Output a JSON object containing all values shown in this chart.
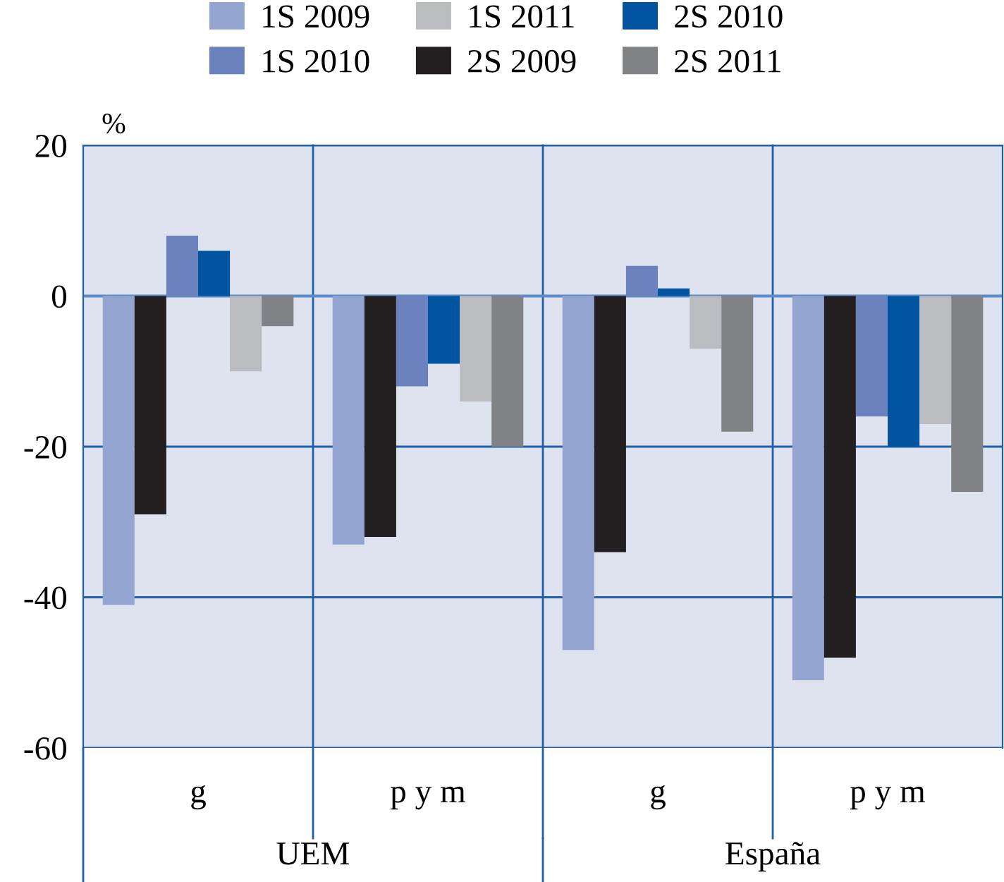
{
  "chart_data": {
    "type": "bar",
    "ylabel": "%",
    "categories": [
      "g",
      "p y m",
      "g",
      "p y m"
    ],
    "series": [
      {
        "name": "1S 2009",
        "color": "#95a5d1",
        "values": [
          -41,
          -33,
          -47,
          -51
        ]
      },
      {
        "name": "2S 2009",
        "color": "#231f20",
        "values": [
          -29,
          -32,
          -34,
          -48
        ]
      },
      {
        "name": "1S 2010",
        "color": "#6b82bf",
        "values": [
          8,
          -12,
          4,
          -16
        ]
      },
      {
        "name": "2S 2010",
        "color": "#0054a0",
        "values": [
          6,
          -9,
          1,
          -20
        ]
      },
      {
        "name": "1S 2011",
        "color": "#bbbcc0",
        "values": [
          -10,
          -14,
          -7,
          -17
        ]
      },
      {
        "name": "2S 2011",
        "color": "#818285",
        "values": [
          -4,
          -20,
          -18,
          -26
        ]
      }
    ],
    "annotations": [
      "UEM",
      "España"
    ],
    "ref_lines": [
      {
        "axis": "y",
        "value": 0,
        "color": "#5b8cc8"
      }
    ],
    "ylim": [
      -60,
      20
    ],
    "yticks": [
      -60,
      -40,
      -20,
      0,
      20
    ],
    "grid": "y",
    "legend": "top"
  }
}
